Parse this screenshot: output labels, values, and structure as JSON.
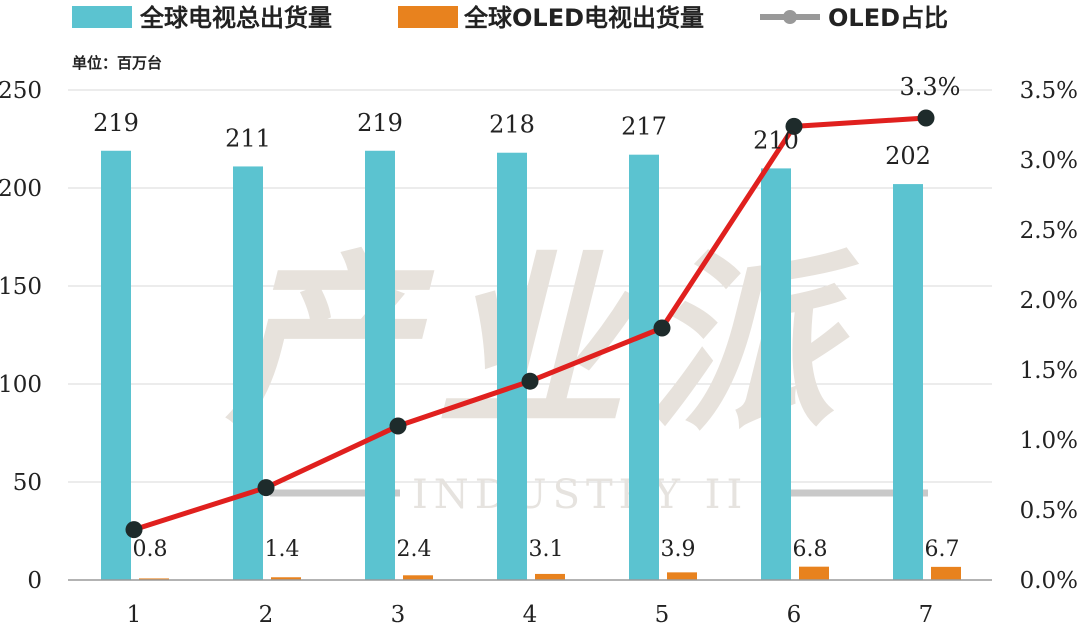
{
  "legend": {
    "series1": "全球电视总出货量",
    "series2": "全球OLED电视出货量",
    "series3": "OLED占比"
  },
  "unit_label": "单位：百万台",
  "watermark": {
    "main": "产业派",
    "sub": "INDUSTRY II"
  },
  "colors": {
    "tv_total": "#5bc3d0",
    "oled_tv": "#e8821e",
    "oled_share_line": "#e0201e",
    "marker": "#1e2b2b"
  },
  "chart_data": {
    "type": "bar",
    "categories": [
      "1",
      "2",
      "3",
      "4",
      "5",
      "6",
      "7"
    ],
    "series": [
      {
        "name": "全球电视总出货量",
        "axis": "left",
        "kind": "bar",
        "values": [
          219,
          211,
          219,
          218,
          217,
          210,
          202
        ]
      },
      {
        "name": "全球OLED电视出货量",
        "axis": "left",
        "kind": "bar",
        "values": [
          0.8,
          1.4,
          2.4,
          3.1,
          3.9,
          6.8,
          6.7
        ]
      },
      {
        "name": "OLED占比",
        "axis": "right",
        "kind": "line",
        "values": [
          0.36,
          0.66,
          1.1,
          1.42,
          1.8,
          3.24,
          3.3
        ]
      }
    ],
    "labels_shown": {
      "bar1": [
        "219",
        "211",
        "219",
        "218",
        "217",
        "210",
        "202"
      ],
      "bar2": [
        "0.8",
        "1.4",
        "2.4",
        "3.1",
        "3.9",
        "6.8",
        "6.7"
      ],
      "line_last": "3.3%"
    },
    "left_axis": {
      "ylim": [
        0,
        250
      ],
      "ticks": [
        "0",
        "50",
        "100",
        "150",
        "200",
        "250"
      ]
    },
    "right_axis": {
      "ylim": [
        0,
        3.5
      ],
      "ticks": [
        "0.0%",
        "0.5%",
        "1.0%",
        "1.5%",
        "2.0%",
        "2.5%",
        "3.0%",
        "3.5%"
      ]
    },
    "grid": true,
    "legend_position": "top"
  }
}
